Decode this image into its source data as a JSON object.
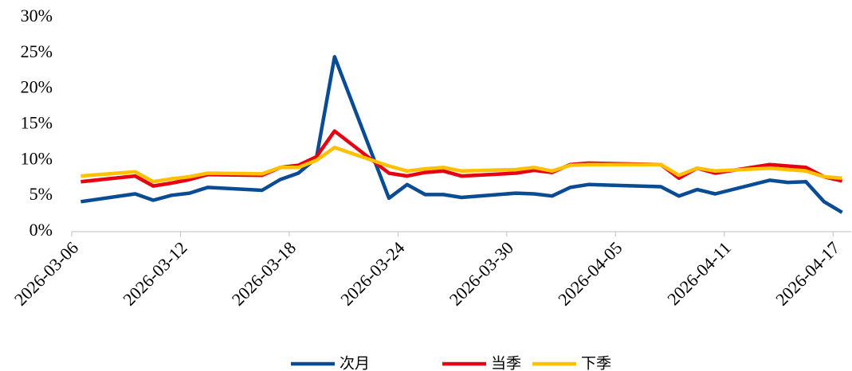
{
  "chart_data": {
    "type": "line",
    "x": [
      "2026-03-06",
      "2026-03-09",
      "2026-03-10",
      "2026-03-11",
      "2026-03-12",
      "2026-03-13",
      "2026-03-16",
      "2026-03-17",
      "2026-03-18",
      "2026-03-19",
      "2026-03-20",
      "2026-03-23",
      "2026-03-24",
      "2026-03-25",
      "2026-03-26",
      "2026-03-27",
      "2026-03-30",
      "2026-03-31",
      "2026-04-01",
      "2026-04-02",
      "2026-04-03",
      "2026-04-07",
      "2026-04-08",
      "2026-04-09",
      "2026-04-10",
      "2026-04-13",
      "2026-04-14",
      "2026-04-15",
      "2026-04-16",
      "2026-04-17"
    ],
    "series": [
      {
        "name": "次月",
        "color": "#0a4c94",
        "values": [
          4.2,
          5.3,
          4.4,
          5.1,
          5.4,
          6.2,
          5.8,
          7.3,
          8.2,
          10.3,
          24.5,
          4.7,
          6.6,
          5.2,
          5.2,
          4.8,
          5.4,
          5.3,
          5.0,
          6.2,
          6.6,
          6.3,
          5.0,
          5.9,
          5.3,
          7.2,
          6.9,
          7.0,
          4.2,
          2.7
        ]
      },
      {
        "name": "当季",
        "color": "#e60012",
        "values": [
          7.0,
          7.8,
          6.4,
          6.8,
          7.3,
          8.0,
          7.9,
          9.0,
          9.3,
          10.5,
          14.1,
          8.2,
          7.8,
          8.3,
          8.5,
          7.8,
          8.2,
          8.6,
          8.3,
          9.4,
          9.6,
          9.4,
          7.5,
          8.9,
          8.2,
          9.4,
          9.2,
          9.0,
          7.7,
          7.1
        ]
      },
      {
        "name": "下季",
        "color": "#ffc000",
        "values": [
          7.8,
          8.4,
          7.0,
          7.4,
          7.7,
          8.2,
          8.1,
          9.0,
          9.0,
          10.0,
          11.8,
          9.2,
          8.5,
          8.8,
          9.0,
          8.5,
          8.7,
          9.0,
          8.5,
          9.3,
          9.4,
          9.4,
          7.9,
          8.9,
          8.5,
          8.9,
          8.7,
          8.5,
          7.7,
          7.5
        ]
      }
    ],
    "xlim": [
      "2026-03-06",
      "2026-04-17"
    ],
    "xticks": [
      "2026-03-06",
      "2026-03-12",
      "2026-03-18",
      "2026-03-24",
      "2026-03-30",
      "2026-04-05",
      "2026-04-11",
      "2026-04-17"
    ],
    "ylim": [
      0,
      30
    ],
    "yticks": [
      {
        "value": 0,
        "label": "0%"
      },
      {
        "value": 5,
        "label": "5%"
      },
      {
        "value": 10,
        "label": "10%"
      },
      {
        "value": 15,
        "label": "15%"
      },
      {
        "value": 20,
        "label": "20%"
      },
      {
        "value": 25,
        "label": "25%"
      },
      {
        "value": 30,
        "label": "30%"
      }
    ],
    "legend": "bottom"
  }
}
